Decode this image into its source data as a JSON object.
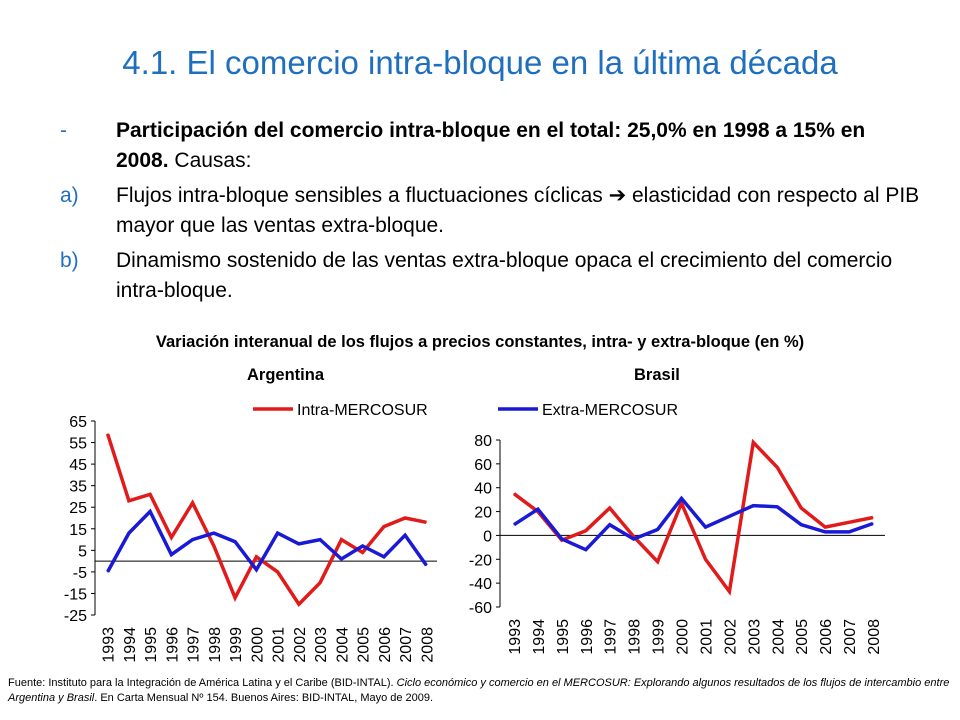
{
  "title": "4.1. El comercio intra-bloque en la última década",
  "bullets": [
    {
      "marker": "-",
      "bold": "Participación del comercio intra-bloque en el total: 25,0% en 1998 a 15% en 2008.",
      "text": " Causas:"
    },
    {
      "marker": "a)",
      "bold": "",
      "text": "Flujos intra-bloque sensibles a fluctuaciones cíclicas ➔ elasticidad con respecto al PIB mayor que las ventas extra-bloque."
    },
    {
      "marker": "b)",
      "bold": "",
      "text": "Dinamismo sostenido de las ventas extra-bloque opaca el crecimiento del comercio intra-bloque."
    }
  ],
  "figure_title": "Variación interanual de los flujos a precios constantes, intra- y extra-bloque (en %)",
  "colors": {
    "title": "#1f6fbf",
    "intra": "#e11b1b",
    "extra": "#1a1ad6"
  },
  "source": {
    "p1": "Fuente: Instituto para la Integración de América Latina y el Caribe (BID-INTAL). ",
    "p2": "Ciclo económico y comercio en el MERCOSUR: Explorando algunos resultados de los flujos de intercambio entre Argentina y Brasil",
    "p3": ". En Carta Mensual Nº 154. Buenos Aires: BID-INTAL,  Mayo de 2009."
  },
  "chart_data": [
    {
      "type": "line",
      "title": "Argentina",
      "x": [
        "1993",
        "1994",
        "1995",
        "1996",
        "1997",
        "1998",
        "1999",
        "2000",
        "2001",
        "2002",
        "2003",
        "2004",
        "2005",
        "2006",
        "2007",
        "2008"
      ],
      "yticks": [
        65,
        55,
        45,
        35,
        25,
        15,
        5,
        -5,
        -15,
        -25
      ],
      "ylim": [
        -25,
        65
      ],
      "legend": "top-right",
      "series": [
        {
          "name": "Intra-MERCOSUR",
          "color": "#e11b1b",
          "values": [
            59,
            28,
            31,
            11,
            27,
            7,
            -17,
            2,
            -5,
            -20,
            -10,
            10,
            4,
            16,
            20,
            18
          ]
        },
        {
          "name": "",
          "color": "#1a1ad6",
          "values": [
            -5,
            13,
            23,
            3,
            10,
            13,
            9,
            -4,
            13,
            8,
            10,
            1,
            7,
            2,
            12,
            -2
          ]
        }
      ]
    },
    {
      "type": "line",
      "title": "Brasil",
      "x": [
        "1993",
        "1994",
        "1995",
        "1996",
        "1997",
        "1998",
        "1999",
        "2000",
        "2001",
        "2002",
        "2003",
        "2004",
        "2005",
        "2006",
        "2007",
        "2008"
      ],
      "yticks": [
        80,
        60,
        40,
        20,
        0,
        -20,
        -40,
        -60
      ],
      "ylim": [
        -60,
        80
      ],
      "legend": "top-left",
      "series": [
        {
          "name": "",
          "color": "#e11b1b",
          "values": [
            35,
            20,
            -4,
            4,
            23,
            -1,
            -22,
            27,
            -20,
            -47,
            78,
            57,
            23,
            7,
            11,
            15
          ]
        },
        {
          "name": "Extra-MERCOSUR",
          "color": "#1a1ad6",
          "values": [
            9,
            22,
            -3,
            -12,
            9,
            -3,
            5,
            31,
            7,
            16,
            25,
            24,
            9,
            3,
            3,
            10
          ]
        }
      ]
    }
  ]
}
